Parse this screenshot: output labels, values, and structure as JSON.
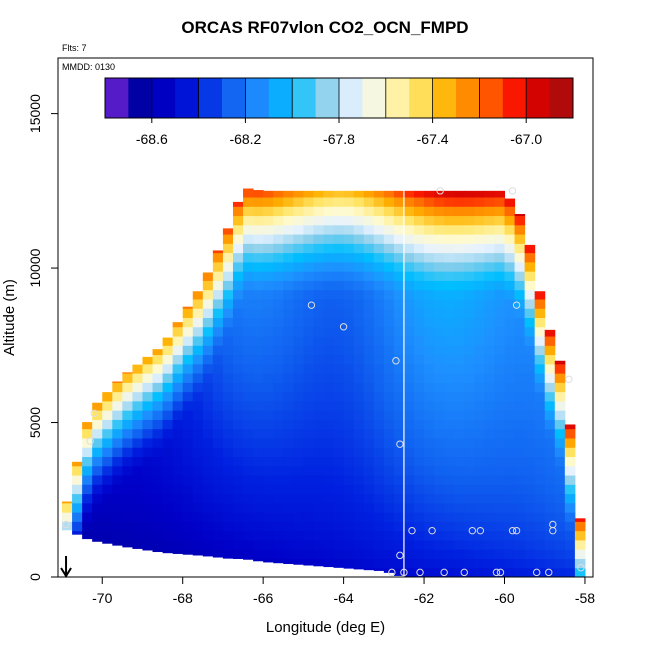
{
  "chart_data": {
    "type": "heatmap",
    "title": "ORCAS RF07vlon CO2_OCN_FMPD",
    "flights_label": "Flts: 7",
    "date_label": "MMDD: 0130",
    "xlabel": "Longitude (deg E)",
    "ylabel": "Altitude (m)",
    "xlim": [
      -71.1,
      -57.8
    ],
    "ylim": [
      0,
      16800
    ],
    "x_ticks": [
      -70,
      -68,
      -66,
      -64,
      -62,
      -60,
      -58
    ],
    "y_ticks": [
      0,
      5000,
      10000,
      15000
    ],
    "colorbar": {
      "min": -68.8,
      "max": -66.8,
      "step": 0.1,
      "tick_values": [
        -68.6,
        -68.2,
        -67.8,
        -67.4,
        -67.0
      ],
      "tick_labels": [
        "-68.6",
        "-68.2",
        "-67.8",
        "-67.4",
        "-67.0"
      ],
      "colors": [
        "#8a2be2",
        "#0000a0",
        "#0000c8",
        "#0020e0",
        "#1060f0",
        "#1e90ff",
        "#00bfff",
        "#87ceeb",
        "#e6f2ff",
        "#fffacd",
        "#ffe566",
        "#ffb000",
        "#ff7700",
        "#ff1a00",
        "#cc0000",
        "#a01010"
      ]
    },
    "vertical_line_lon": -62.5,
    "arrow_lon": -70.9,
    "domain_envelope": {
      "lon": [
        -71.0,
        -70.3,
        -69.5,
        -68.5,
        -67.5,
        -66.8,
        -66.5,
        -66.0,
        -64.0,
        -63.0,
        -62.5,
        -62.0,
        -61.0,
        -60.0,
        -59.5,
        -59.0,
        -58.5,
        -58.3,
        -58.0
      ],
      "top_alt": [
        1800,
        5400,
        6500,
        7500,
        9500,
        11500,
        12600,
        12500,
        12500,
        12500,
        12500,
        12500,
        12500,
        12500,
        11500,
        8500,
        6500,
        4000,
        400
      ],
      "bottom_alt": [
        1600,
        1200,
        1000,
        800,
        700,
        600,
        600,
        500,
        300,
        200,
        0,
        0,
        0,
        0,
        0,
        0,
        0,
        0,
        0
      ]
    },
    "field_description": "values lowest (-68.8) near surface in west, increasing with altitude to -66.8 at ~12500 m",
    "sample_points": [
      {
        "lon": -70.9,
        "alt": 1700
      },
      {
        "lon": -70.3,
        "alt": 4400
      },
      {
        "lon": -70.2,
        "alt": 5300
      },
      {
        "lon": -64.8,
        "alt": 8800
      },
      {
        "lon": -64.0,
        "alt": 8100
      },
      {
        "lon": -62.7,
        "alt": 7000
      },
      {
        "lon": -62.6,
        "alt": 4300
      },
      {
        "lon": -62.6,
        "alt": 700
      },
      {
        "lon": -62.3,
        "alt": 1500
      },
      {
        "lon": -61.8,
        "alt": 1500
      },
      {
        "lon": -60.8,
        "alt": 1500
      },
      {
        "lon": -60.6,
        "alt": 1500
      },
      {
        "lon": -59.8,
        "alt": 1500
      },
      {
        "lon": -59.7,
        "alt": 1500
      },
      {
        "lon": -59.7,
        "alt": 8800
      },
      {
        "lon": -58.8,
        "alt": 1700
      },
      {
        "lon": -58.8,
        "alt": 1500
      },
      {
        "lon": -58.4,
        "alt": 6400
      },
      {
        "lon": -58.1,
        "alt": 300
      },
      {
        "lon": -62.8,
        "alt": 150
      },
      {
        "lon": -62.5,
        "alt": 150
      },
      {
        "lon": -61.5,
        "alt": 150
      },
      {
        "lon": -61.0,
        "alt": 150
      },
      {
        "lon": -60.2,
        "alt": 150
      },
      {
        "lon": -60.1,
        "alt": 150
      },
      {
        "lon": -59.2,
        "alt": 150
      },
      {
        "lon": -58.9,
        "alt": 150
      },
      {
        "lon": -61.6,
        "alt": 12500
      },
      {
        "lon": -59.8,
        "alt": 12500
      },
      {
        "lon": -62.1,
        "alt": 150
      }
    ]
  }
}
